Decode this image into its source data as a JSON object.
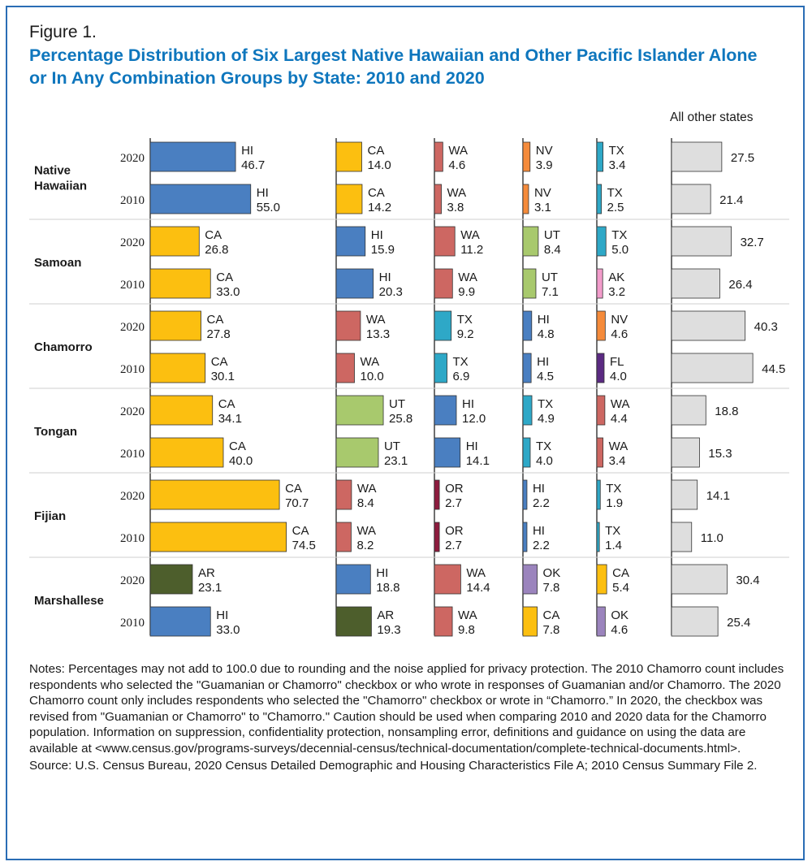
{
  "figure_label": "Figure 1.",
  "title": "Percentage Distribution of Six Largest Native Hawaiian and Other Pacific Islander Alone or In Any Combination Groups by State: 2010 and 2020",
  "notes": "Notes: Percentages may not add to 100.0 due to rounding and the noise applied for privacy protection. The 2010 Chamorro count includes respondents who selected the \"Guamanian or Chamorro\" checkbox or who wrote in responses of Guamanian and/or Chamorro. The 2020 Chamorro count only includes respondents who selected the \"Chamorro\" checkbox or wrote in “Chamorro.” In 2020, the checkbox was revised from \"Guamanian or Chamorro\" to \"Chamorro.\" Caution should be used when comparing 2010 and 2020 data for the Chamorro population. Information on suppression, confidentiality protection, nonsampling error, definitions and guidance on using the data are available at <www.census.gov/programs-surveys/decennial-census/technical-documentation/complete-technical-documents.html>.",
  "source": "Source: U.S. Census Bureau, 2020 Census Detailed Demographic and Housing Characteristics File A; 2010 Census Summary File 2.",
  "colors": {
    "HI": "#4a7fc1",
    "CA": "#fcbf10",
    "WA": "#cd6762",
    "NV": "#f58b3b",
    "TX": "#2ea8c7",
    "UT": "#a8c96d",
    "AK": "#f29ccb",
    "FL": "#5b2a82",
    "OR": "#8e1b3e",
    "AR": "#4d5e2c",
    "OK": "#9b84bd",
    "other": "#dedede",
    "title": "#0e76bd",
    "frame": "#2a6db5"
  },
  "chart_data": {
    "type": "bar",
    "orientation": "horizontal",
    "title": "Percentage Distribution of Six Largest Native Hawaiian and Other Pacific Islander Alone or In Any Combination Groups by State: 2010 and 2020",
    "unit": "percent",
    "other_column_header": "All other states",
    "groups": [
      {
        "name": "Native Hawaiian",
        "rows": [
          {
            "year": "2020",
            "states": [
              {
                "state": "HI",
                "value": 46.7
              },
              {
                "state": "CA",
                "value": 14.0
              },
              {
                "state": "WA",
                "value": 4.6
              },
              {
                "state": "NV",
                "value": 3.9
              },
              {
                "state": "TX",
                "value": 3.4
              }
            ],
            "other": 27.5
          },
          {
            "year": "2010",
            "states": [
              {
                "state": "HI",
                "value": 55.0
              },
              {
                "state": "CA",
                "value": 14.2
              },
              {
                "state": "WA",
                "value": 3.8
              },
              {
                "state": "NV",
                "value": 3.1
              },
              {
                "state": "TX",
                "value": 2.5
              }
            ],
            "other": 21.4
          }
        ]
      },
      {
        "name": "Samoan",
        "rows": [
          {
            "year": "2020",
            "states": [
              {
                "state": "CA",
                "value": 26.8
              },
              {
                "state": "HI",
                "value": 15.9
              },
              {
                "state": "WA",
                "value": 11.2
              },
              {
                "state": "UT",
                "value": 8.4
              },
              {
                "state": "TX",
                "value": 5.0
              }
            ],
            "other": 32.7
          },
          {
            "year": "2010",
            "states": [
              {
                "state": "CA",
                "value": 33.0
              },
              {
                "state": "HI",
                "value": 20.3
              },
              {
                "state": "WA",
                "value": 9.9
              },
              {
                "state": "UT",
                "value": 7.1
              },
              {
                "state": "AK",
                "value": 3.2
              }
            ],
            "other": 26.4
          }
        ]
      },
      {
        "name": "Chamorro",
        "rows": [
          {
            "year": "2020",
            "states": [
              {
                "state": "CA",
                "value": 27.8
              },
              {
                "state": "WA",
                "value": 13.3
              },
              {
                "state": "TX",
                "value": 9.2
              },
              {
                "state": "HI",
                "value": 4.8
              },
              {
                "state": "NV",
                "value": 4.6
              }
            ],
            "other": 40.3
          },
          {
            "year": "2010",
            "states": [
              {
                "state": "CA",
                "value": 30.1
              },
              {
                "state": "WA",
                "value": 10.0
              },
              {
                "state": "TX",
                "value": 6.9
              },
              {
                "state": "HI",
                "value": 4.5
              },
              {
                "state": "FL",
                "value": 4.0
              }
            ],
            "other": 44.5
          }
        ]
      },
      {
        "name": "Tongan",
        "rows": [
          {
            "year": "2020",
            "states": [
              {
                "state": "CA",
                "value": 34.1
              },
              {
                "state": "UT",
                "value": 25.8
              },
              {
                "state": "HI",
                "value": 12.0
              },
              {
                "state": "TX",
                "value": 4.9
              },
              {
                "state": "WA",
                "value": 4.4
              }
            ],
            "other": 18.8
          },
          {
            "year": "2010",
            "states": [
              {
                "state": "CA",
                "value": 40.0
              },
              {
                "state": "UT",
                "value": 23.1
              },
              {
                "state": "HI",
                "value": 14.1
              },
              {
                "state": "TX",
                "value": 4.0
              },
              {
                "state": "WA",
                "value": 3.4
              }
            ],
            "other": 15.3
          }
        ]
      },
      {
        "name": "Fijian",
        "rows": [
          {
            "year": "2020",
            "states": [
              {
                "state": "CA",
                "value": 70.7
              },
              {
                "state": "WA",
                "value": 8.4
              },
              {
                "state": "OR",
                "value": 2.7
              },
              {
                "state": "HI",
                "value": 2.2
              },
              {
                "state": "TX",
                "value": 1.9
              }
            ],
            "other": 14.1
          },
          {
            "year": "2010",
            "states": [
              {
                "state": "CA",
                "value": 74.5
              },
              {
                "state": "WA",
                "value": 8.2
              },
              {
                "state": "OR",
                "value": 2.7
              },
              {
                "state": "HI",
                "value": 2.2
              },
              {
                "state": "TX",
                "value": 1.4
              }
            ],
            "other": 11.0
          }
        ]
      },
      {
        "name": "Marshallese",
        "rows": [
          {
            "year": "2020",
            "states": [
              {
                "state": "AR",
                "value": 23.1
              },
              {
                "state": "HI",
                "value": 18.8
              },
              {
                "state": "WA",
                "value": 14.4
              },
              {
                "state": "OK",
                "value": 7.8
              },
              {
                "state": "CA",
                "value": 5.4
              }
            ],
            "other": 30.4
          },
          {
            "year": "2010",
            "states": [
              {
                "state": "HI",
                "value": 33.0
              },
              {
                "state": "AR",
                "value": 19.3
              },
              {
                "state": "WA",
                "value": 9.8
              },
              {
                "state": "CA",
                "value": 7.8
              },
              {
                "state": "OK",
                "value": 4.6
              }
            ],
            "other": 25.4
          }
        ]
      }
    ]
  }
}
